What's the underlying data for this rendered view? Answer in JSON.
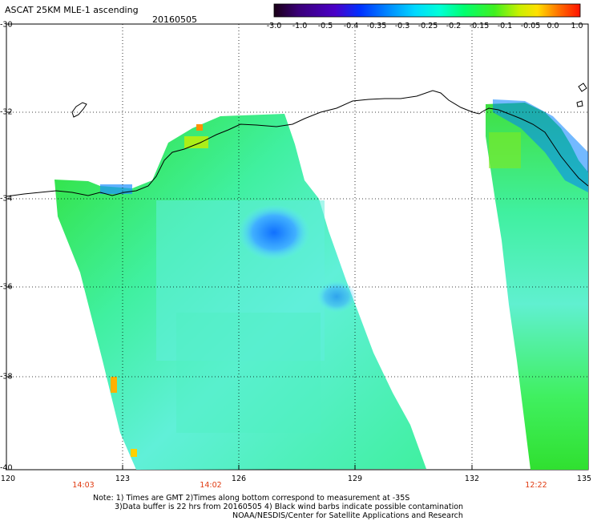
{
  "header": {
    "title": "ASCAT 25KM MLE-1 ascending",
    "date": "20160505"
  },
  "colorbar": {
    "labels": [
      "-3.0",
      "-1.0",
      "-0.5",
      "-0.4",
      "-0.35",
      "-0.3",
      "-0.25",
      "-0.2",
      "-0.15",
      "-0.1",
      "-0.05",
      "0.0",
      "1.0"
    ],
    "colors": [
      "#1a0a1a",
      "#3a0078",
      "#5a00b8",
      "#0028ff",
      "#0080ff",
      "#00c8ff",
      "#00ffe0",
      "#00ff80",
      "#20e020",
      "#a0f000",
      "#ffff00",
      "#ff8000",
      "#ff2000"
    ]
  },
  "axes": {
    "lat_labels": [
      "-30",
      "-32",
      "-34",
      "-36",
      "-38",
      "-40"
    ],
    "lon_labels": [
      "120",
      "123",
      "126",
      "129",
      "132",
      "135"
    ]
  },
  "time_labels": [
    "14:03",
    "14:02",
    "12:22"
  ],
  "notes": [
    "Note: 1) Times are GMT 2)Times along bottom correspond to measurement at -35S",
    "3)Data buffer is 22 hrs from 20160505 4) Black wind barbs indicate possible contamination",
    "NOAA/NESDIS/Center for Satellite Applications and Research"
  ]
}
